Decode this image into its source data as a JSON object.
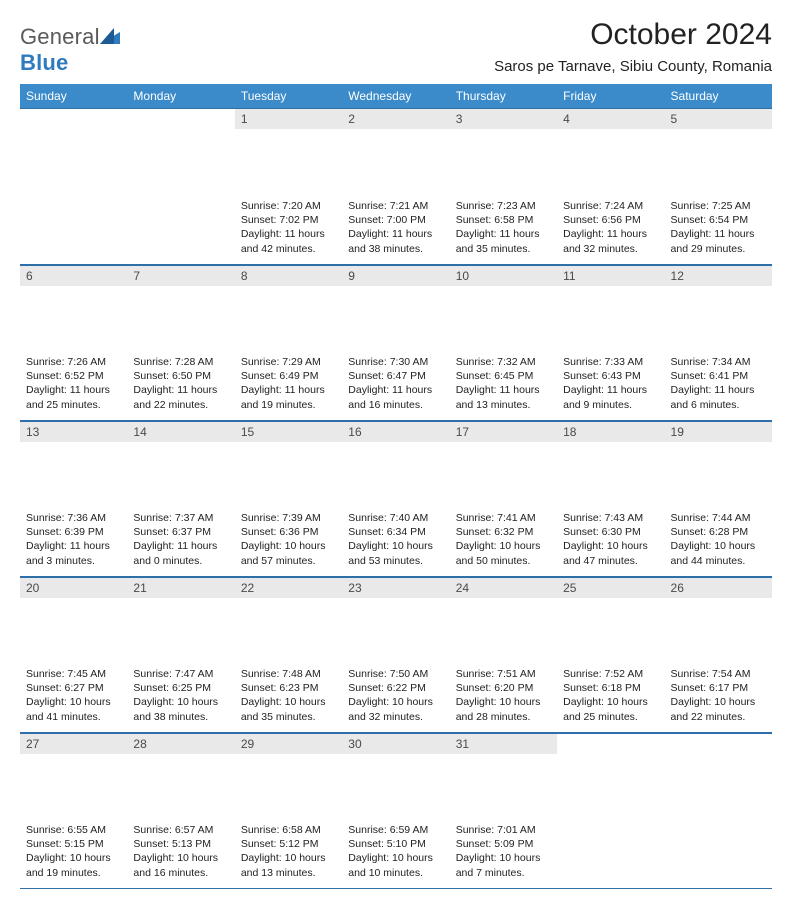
{
  "brand": {
    "part1": "General",
    "part2": "Blue"
  },
  "title": "October 2024",
  "subtitle": "Saros pe Tarnave, Sibiu County, Romania",
  "colors": {
    "header_bg": "#3b8bca",
    "header_text": "#ffffff",
    "rule": "#2f6fa8",
    "daynum_bg": "#e9e9e9",
    "logo_gray": "#5a5a5a",
    "logo_blue": "#2f7bbf"
  },
  "dow": [
    "Sunday",
    "Monday",
    "Tuesday",
    "Wednesday",
    "Thursday",
    "Friday",
    "Saturday"
  ],
  "weeks": [
    [
      null,
      null,
      {
        "n": "1",
        "sr": "7:20 AM",
        "ss": "7:02 PM",
        "dl": "11 hours and 42 minutes."
      },
      {
        "n": "2",
        "sr": "7:21 AM",
        "ss": "7:00 PM",
        "dl": "11 hours and 38 minutes."
      },
      {
        "n": "3",
        "sr": "7:23 AM",
        "ss": "6:58 PM",
        "dl": "11 hours and 35 minutes."
      },
      {
        "n": "4",
        "sr": "7:24 AM",
        "ss": "6:56 PM",
        "dl": "11 hours and 32 minutes."
      },
      {
        "n": "5",
        "sr": "7:25 AM",
        "ss": "6:54 PM",
        "dl": "11 hours and 29 minutes."
      }
    ],
    [
      {
        "n": "6",
        "sr": "7:26 AM",
        "ss": "6:52 PM",
        "dl": "11 hours and 25 minutes."
      },
      {
        "n": "7",
        "sr": "7:28 AM",
        "ss": "6:50 PM",
        "dl": "11 hours and 22 minutes."
      },
      {
        "n": "8",
        "sr": "7:29 AM",
        "ss": "6:49 PM",
        "dl": "11 hours and 19 minutes."
      },
      {
        "n": "9",
        "sr": "7:30 AM",
        "ss": "6:47 PM",
        "dl": "11 hours and 16 minutes."
      },
      {
        "n": "10",
        "sr": "7:32 AM",
        "ss": "6:45 PM",
        "dl": "11 hours and 13 minutes."
      },
      {
        "n": "11",
        "sr": "7:33 AM",
        "ss": "6:43 PM",
        "dl": "11 hours and 9 minutes."
      },
      {
        "n": "12",
        "sr": "7:34 AM",
        "ss": "6:41 PM",
        "dl": "11 hours and 6 minutes."
      }
    ],
    [
      {
        "n": "13",
        "sr": "7:36 AM",
        "ss": "6:39 PM",
        "dl": "11 hours and 3 minutes."
      },
      {
        "n": "14",
        "sr": "7:37 AM",
        "ss": "6:37 PM",
        "dl": "11 hours and 0 minutes."
      },
      {
        "n": "15",
        "sr": "7:39 AM",
        "ss": "6:36 PM",
        "dl": "10 hours and 57 minutes."
      },
      {
        "n": "16",
        "sr": "7:40 AM",
        "ss": "6:34 PM",
        "dl": "10 hours and 53 minutes."
      },
      {
        "n": "17",
        "sr": "7:41 AM",
        "ss": "6:32 PM",
        "dl": "10 hours and 50 minutes."
      },
      {
        "n": "18",
        "sr": "7:43 AM",
        "ss": "6:30 PM",
        "dl": "10 hours and 47 minutes."
      },
      {
        "n": "19",
        "sr": "7:44 AM",
        "ss": "6:28 PM",
        "dl": "10 hours and 44 minutes."
      }
    ],
    [
      {
        "n": "20",
        "sr": "7:45 AM",
        "ss": "6:27 PM",
        "dl": "10 hours and 41 minutes."
      },
      {
        "n": "21",
        "sr": "7:47 AM",
        "ss": "6:25 PM",
        "dl": "10 hours and 38 minutes."
      },
      {
        "n": "22",
        "sr": "7:48 AM",
        "ss": "6:23 PM",
        "dl": "10 hours and 35 minutes."
      },
      {
        "n": "23",
        "sr": "7:50 AM",
        "ss": "6:22 PM",
        "dl": "10 hours and 32 minutes."
      },
      {
        "n": "24",
        "sr": "7:51 AM",
        "ss": "6:20 PM",
        "dl": "10 hours and 28 minutes."
      },
      {
        "n": "25",
        "sr": "7:52 AM",
        "ss": "6:18 PM",
        "dl": "10 hours and 25 minutes."
      },
      {
        "n": "26",
        "sr": "7:54 AM",
        "ss": "6:17 PM",
        "dl": "10 hours and 22 minutes."
      }
    ],
    [
      {
        "n": "27",
        "sr": "6:55 AM",
        "ss": "5:15 PM",
        "dl": "10 hours and 19 minutes."
      },
      {
        "n": "28",
        "sr": "6:57 AM",
        "ss": "5:13 PM",
        "dl": "10 hours and 16 minutes."
      },
      {
        "n": "29",
        "sr": "6:58 AM",
        "ss": "5:12 PM",
        "dl": "10 hours and 13 minutes."
      },
      {
        "n": "30",
        "sr": "6:59 AM",
        "ss": "5:10 PM",
        "dl": "10 hours and 10 minutes."
      },
      {
        "n": "31",
        "sr": "7:01 AM",
        "ss": "5:09 PM",
        "dl": "10 hours and 7 minutes."
      },
      null,
      null
    ]
  ],
  "labels": {
    "sunrise": "Sunrise: ",
    "sunset": "Sunset: ",
    "daylight": "Daylight: "
  }
}
